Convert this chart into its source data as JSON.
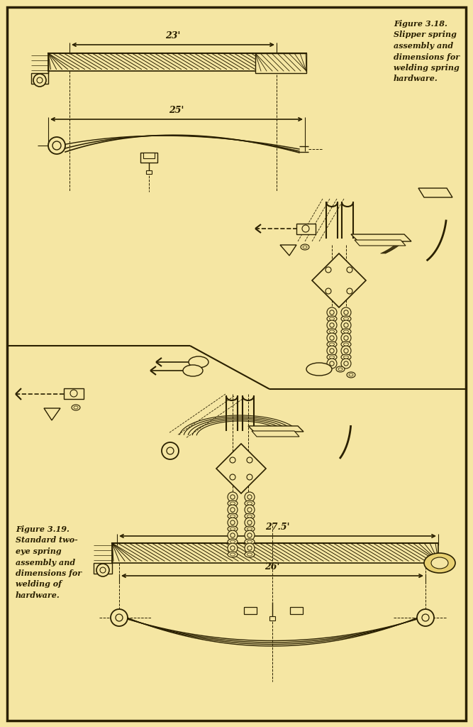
{
  "bg_color": "#f5e6a3",
  "line_color": "#2a2000",
  "fig_width": 6.67,
  "fig_height": 10.24,
  "fig318_title": "Figure 3.18.\nSlipper spring\nassembly and\ndimensions for\nwelding spring\nhardware.",
  "fig319_title": "Figure 3.19.\nStandard two-\neye spring\nassembly and\ndimensions for\nwelding of\nhardware.",
  "dim_23": "23'",
  "dim_25": "25'",
  "dim_275": "27.5'",
  "dim_26": "26'",
  "font_size_caption": 8.0
}
